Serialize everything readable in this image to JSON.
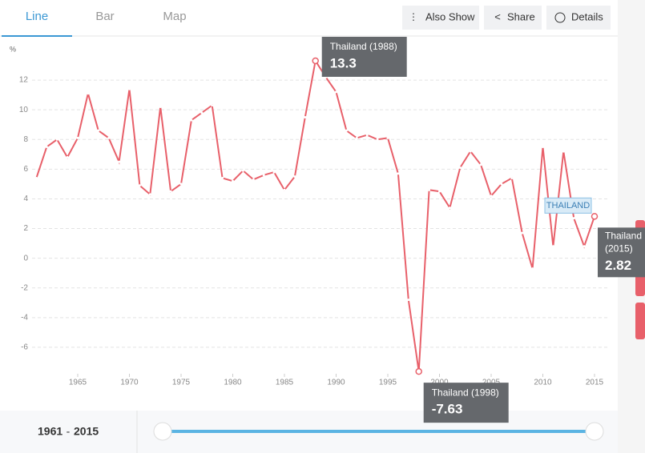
{
  "tabs": [
    "Line",
    "Bar",
    "Map"
  ],
  "buttons": [
    "Also Show",
    "Share",
    "Details"
  ],
  "range": {
    "start": "1961",
    "separator": "-",
    "end": "2015"
  },
  "tooltips": [
    {
      "title": "Thailand (1988)"
    },
    {
      "title": "Thailand (1998)"
    },
    {
      "title_lines": [
        "Thailand",
        "(2015)"
      ]
    }
  ],
  "chart_data": {
    "type": "line",
    "y_label": "%",
    "x": [
      1961,
      1962,
      1963,
      1964,
      1965,
      1966,
      1967,
      1968,
      1969,
      1970,
      1971,
      1972,
      1973,
      1974,
      1975,
      1976,
      1977,
      1978,
      1979,
      1980,
      1981,
      1982,
      1983,
      1984,
      1985,
      1986,
      1987,
      1988,
      1989,
      1990,
      1991,
      1992,
      1993,
      1994,
      1995,
      1996,
      1997,
      1998,
      1999,
      2000,
      2001,
      2002,
      2003,
      2004,
      2005,
      2006,
      2007,
      2008,
      2009,
      2010,
      2011,
      2012,
      2013,
      2014,
      2015
    ],
    "series": [
      {
        "name": "THAILAND",
        "color": "#e8606a",
        "values": [
          5.4,
          7.5,
          8.0,
          6.8,
          8.1,
          11.1,
          8.6,
          8.1,
          6.5,
          11.4,
          4.9,
          4.3,
          10.2,
          4.5,
          5.0,
          9.3,
          9.8,
          10.3,
          5.4,
          5.2,
          5.9,
          5.3,
          5.6,
          5.8,
          4.6,
          5.5,
          9.5,
          13.3,
          12.2,
          11.2,
          8.6,
          8.1,
          8.3,
          8.0,
          8.1,
          5.7,
          -2.8,
          -7.63,
          4.6,
          4.5,
          3.4,
          6.1,
          7.2,
          6.3,
          4.2,
          5.0,
          5.4,
          1.7,
          -0.7,
          7.5,
          0.8,
          7.2,
          2.7,
          0.8,
          2.82
        ]
      }
    ],
    "xlim": [
      1961,
      2015
    ],
    "xticks": [
      1965,
      1970,
      1975,
      1980,
      1985,
      1990,
      1995,
      2000,
      2005,
      2010,
      2015
    ],
    "ylim": [
      -8,
      14
    ],
    "yticks": [
      -6,
      -4,
      -2,
      0,
      2,
      4,
      6,
      8,
      10,
      12
    ],
    "grid": true
  }
}
